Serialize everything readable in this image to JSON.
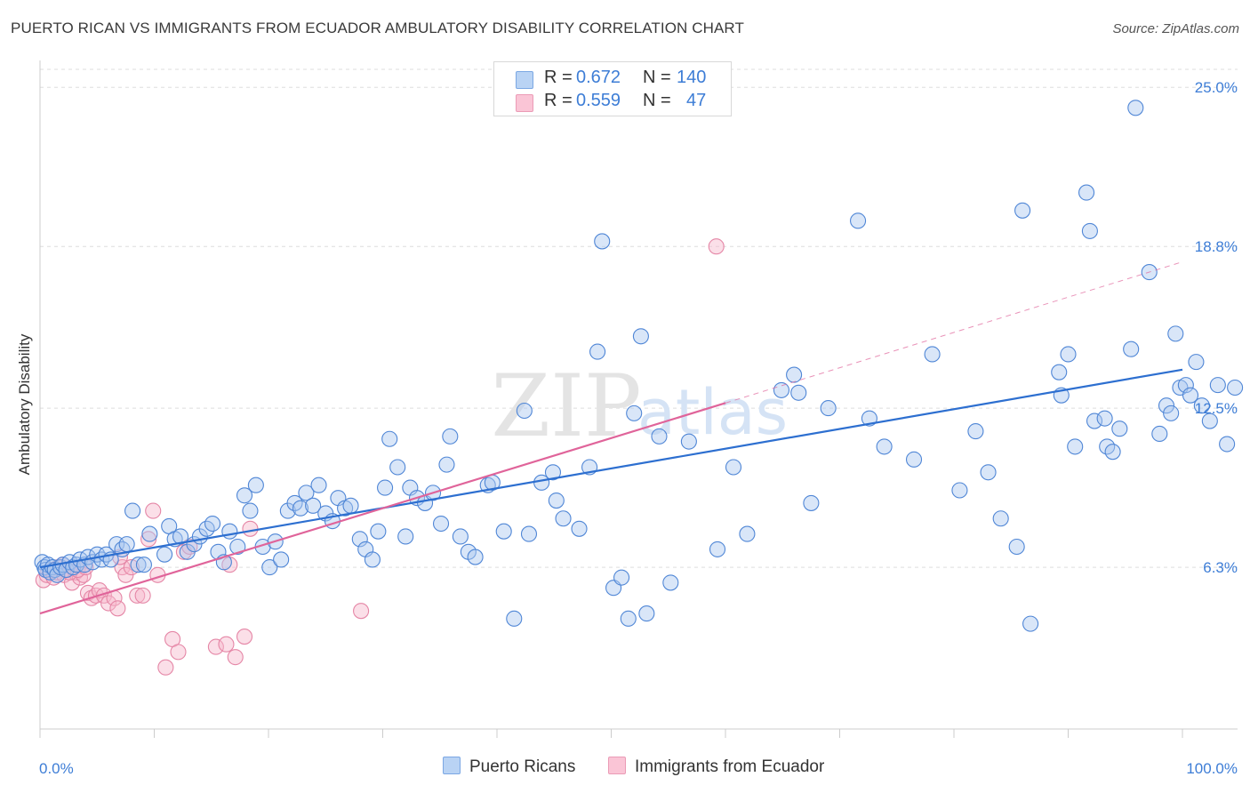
{
  "header": {
    "title": "PUERTO RICAN VS IMMIGRANTS FROM ECUADOR AMBULATORY DISABILITY CORRELATION CHART",
    "source": "Source: ZipAtlas.com"
  },
  "legend": {
    "series1": {
      "r_label": "R =",
      "r_value": "0.672",
      "n_label": "N =",
      "n_value": "140"
    },
    "series2": {
      "r_label": "R =",
      "r_value": "0.559",
      "n_label": "N =",
      "n_value": "47"
    }
  },
  "bottom_legend": {
    "series1": "Puerto Ricans",
    "series2": "Immigrants from Ecuador"
  },
  "watermark": {
    "part1": "ZIP",
    "part2": "atlas"
  },
  "colors": {
    "blue_fill": "#aac8f0",
    "blue_stroke": "#4f86d6",
    "blue_line": "#2d6fd0",
    "pink_fill": "#f6b8cc",
    "pink_stroke": "#e586a6",
    "pink_line": "#e0649a",
    "tick_text": "#3d7dd6",
    "grid": "#dddddd"
  },
  "chart_data": {
    "type": "scatter",
    "title": "PUERTO RICAN VS IMMIGRANTS FROM ECUADOR AMBULATORY DISABILITY CORRELATION CHART",
    "xlabel": "",
    "ylabel": "Ambulatory Disability",
    "xlim": [
      0,
      100
    ],
    "ylim": [
      0,
      25.7
    ],
    "x_tick_labels": [
      {
        "value": 0,
        "label": "0.0%"
      },
      {
        "value": 100,
        "label": "100.0%"
      }
    ],
    "y_tick_labels": [
      {
        "value": 6.3,
        "label": "6.3%"
      },
      {
        "value": 12.5,
        "label": "12.5%"
      },
      {
        "value": 18.8,
        "label": "18.8%"
      },
      {
        "value": 25.0,
        "label": "25.0%"
      }
    ],
    "grid": true,
    "legend_position": "top-center",
    "series": [
      {
        "name": "Puerto Ricans",
        "color": "#4f86d6",
        "points": [
          [
            0.2,
            6.5
          ],
          [
            0.4,
            6.3
          ],
          [
            0.5,
            6.2
          ],
          [
            0.7,
            6.4
          ],
          [
            0.9,
            6.1
          ],
          [
            1.1,
            6.3
          ],
          [
            1.3,
            6.2
          ],
          [
            1.5,
            6.0
          ],
          [
            1.8,
            6.3
          ],
          [
            2.0,
            6.4
          ],
          [
            2.3,
            6.2
          ],
          [
            2.6,
            6.5
          ],
          [
            2.9,
            6.3
          ],
          [
            3.2,
            6.4
          ],
          [
            3.5,
            6.6
          ],
          [
            3.9,
            6.4
          ],
          [
            4.2,
            6.7
          ],
          [
            4.6,
            6.5
          ],
          [
            5.0,
            6.8
          ],
          [
            5.4,
            6.6
          ],
          [
            5.8,
            6.8
          ],
          [
            6.2,
            6.6
          ],
          [
            6.7,
            7.2
          ],
          [
            7.2,
            7.0
          ],
          [
            7.6,
            7.2
          ],
          [
            8.1,
            8.5
          ],
          [
            8.6,
            6.4
          ],
          [
            9.1,
            6.4
          ],
          [
            9.6,
            7.6
          ],
          [
            10.9,
            6.8
          ],
          [
            11.3,
            7.9
          ],
          [
            11.8,
            7.4
          ],
          [
            12.3,
            7.5
          ],
          [
            12.9,
            6.9
          ],
          [
            13.5,
            7.2
          ],
          [
            14.0,
            7.5
          ],
          [
            14.6,
            7.8
          ],
          [
            15.1,
            8.0
          ],
          [
            15.6,
            6.9
          ],
          [
            16.1,
            6.5
          ],
          [
            16.6,
            7.7
          ],
          [
            17.3,
            7.1
          ],
          [
            17.9,
            9.1
          ],
          [
            18.4,
            8.5
          ],
          [
            18.9,
            9.5
          ],
          [
            19.5,
            7.1
          ],
          [
            20.1,
            6.3
          ],
          [
            20.6,
            7.3
          ],
          [
            21.1,
            6.6
          ],
          [
            21.7,
            8.5
          ],
          [
            22.3,
            8.8
          ],
          [
            22.8,
            8.6
          ],
          [
            23.3,
            9.2
          ],
          [
            23.9,
            8.7
          ],
          [
            24.4,
            9.5
          ],
          [
            25.0,
            8.4
          ],
          [
            25.6,
            8.1
          ],
          [
            26.1,
            9.0
          ],
          [
            26.7,
            8.6
          ],
          [
            27.2,
            8.7
          ],
          [
            28.0,
            7.4
          ],
          [
            28.5,
            7.0
          ],
          [
            29.1,
            6.6
          ],
          [
            29.6,
            7.7
          ],
          [
            30.2,
            9.4
          ],
          [
            30.6,
            11.3
          ],
          [
            31.3,
            10.2
          ],
          [
            32.0,
            7.5
          ],
          [
            32.4,
            9.4
          ],
          [
            33.0,
            9.0
          ],
          [
            33.7,
            8.8
          ],
          [
            34.4,
            9.2
          ],
          [
            35.1,
            8.0
          ],
          [
            35.6,
            10.3
          ],
          [
            35.9,
            11.4
          ],
          [
            36.8,
            7.5
          ],
          [
            37.5,
            6.9
          ],
          [
            38.1,
            6.7
          ],
          [
            39.2,
            9.5
          ],
          [
            39.6,
            9.6
          ],
          [
            40.6,
            7.7
          ],
          [
            41.5,
            4.3
          ],
          [
            42.4,
            12.4
          ],
          [
            42.8,
            7.6
          ],
          [
            43.9,
            9.6
          ],
          [
            44.9,
            10.0
          ],
          [
            45.2,
            8.9
          ],
          [
            45.8,
            8.2
          ],
          [
            47.2,
            7.8
          ],
          [
            48.1,
            10.2
          ],
          [
            48.8,
            14.7
          ],
          [
            49.2,
            19.0
          ],
          [
            50.2,
            5.5
          ],
          [
            50.9,
            5.9
          ],
          [
            51.5,
            4.3
          ],
          [
            52.0,
            12.3
          ],
          [
            52.6,
            15.3
          ],
          [
            53.1,
            4.5
          ],
          [
            54.2,
            11.4
          ],
          [
            55.2,
            5.7
          ],
          [
            56.8,
            11.2
          ],
          [
            59.3,
            7.0
          ],
          [
            60.7,
            10.2
          ],
          [
            61.9,
            7.6
          ],
          [
            64.9,
            13.2
          ],
          [
            66.0,
            13.8
          ],
          [
            66.4,
            13.1
          ],
          [
            67.5,
            8.8
          ],
          [
            69.0,
            12.5
          ],
          [
            71.6,
            19.8
          ],
          [
            72.6,
            12.1
          ],
          [
            73.9,
            11.0
          ],
          [
            76.5,
            10.5
          ],
          [
            78.1,
            14.6
          ],
          [
            80.5,
            9.3
          ],
          [
            81.9,
            11.6
          ],
          [
            83.0,
            10.0
          ],
          [
            84.1,
            8.2
          ],
          [
            85.5,
            7.1
          ],
          [
            86.0,
            20.2
          ],
          [
            86.7,
            4.1
          ],
          [
            89.2,
            13.9
          ],
          [
            89.4,
            13.0
          ],
          [
            90.0,
            14.6
          ],
          [
            90.6,
            11.0
          ],
          [
            91.6,
            20.9
          ],
          [
            91.9,
            19.4
          ],
          [
            92.3,
            12.0
          ],
          [
            93.2,
            12.1
          ],
          [
            93.4,
            11.0
          ],
          [
            93.9,
            10.8
          ],
          [
            94.5,
            11.7
          ],
          [
            95.5,
            14.8
          ],
          [
            95.9,
            24.2
          ],
          [
            97.1,
            17.8
          ],
          [
            98.0,
            11.5
          ],
          [
            98.6,
            12.6
          ],
          [
            99.0,
            12.3
          ],
          [
            99.4,
            15.4
          ],
          [
            99.8,
            13.3
          ],
          [
            100.3,
            13.4
          ],
          [
            100.7,
            13.0
          ],
          [
            101.2,
            14.3
          ],
          [
            101.7,
            12.6
          ],
          [
            102.4,
            12.0
          ],
          [
            103.1,
            13.4
          ],
          [
            103.9,
            11.1
          ],
          [
            104.6,
            13.3
          ]
        ]
      },
      {
        "name": "Immigrants from Ecuador",
        "color": "#e586a6",
        "points": [
          [
            0.3,
            5.8
          ],
          [
            0.6,
            6.0
          ],
          [
            0.9,
            6.2
          ],
          [
            1.2,
            5.9
          ],
          [
            1.5,
            6.1
          ],
          [
            1.8,
            6.3
          ],
          [
            2.1,
            6.0
          ],
          [
            2.4,
            6.2
          ],
          [
            2.8,
            5.7
          ],
          [
            3.1,
            6.1
          ],
          [
            3.5,
            5.9
          ],
          [
            3.8,
            6.0
          ],
          [
            4.2,
            5.3
          ],
          [
            4.5,
            5.1
          ],
          [
            4.9,
            5.2
          ],
          [
            5.2,
            5.4
          ],
          [
            5.6,
            5.2
          ],
          [
            6.0,
            4.9
          ],
          [
            6.5,
            5.1
          ],
          [
            6.8,
            4.7
          ],
          [
            7.2,
            6.3
          ],
          [
            7.5,
            6.0
          ],
          [
            8.0,
            6.3
          ],
          [
            8.5,
            5.2
          ],
          [
            9.0,
            5.2
          ],
          [
            9.5,
            7.4
          ],
          [
            9.9,
            8.5
          ],
          [
            10.3,
            6.0
          ],
          [
            11.0,
            2.4
          ],
          [
            11.6,
            3.5
          ],
          [
            12.1,
            3.0
          ],
          [
            12.6,
            6.9
          ],
          [
            13.1,
            7.1
          ],
          [
            15.4,
            3.2
          ],
          [
            16.3,
            3.3
          ],
          [
            16.6,
            6.4
          ],
          [
            17.1,
            2.8
          ],
          [
            17.9,
            3.6
          ],
          [
            18.4,
            7.8
          ],
          [
            1.6,
            6.3
          ],
          [
            2.0,
            6.4
          ],
          [
            2.6,
            6.1
          ],
          [
            3.3,
            6.2
          ],
          [
            4.0,
            6.3
          ],
          [
            7.0,
            6.7
          ],
          [
            28.1,
            4.6
          ],
          [
            59.2,
            18.8
          ]
        ]
      }
    ],
    "trend_lines": [
      {
        "series": "Puerto Ricans",
        "from": [
          0,
          6.3
        ],
        "to": [
          100,
          14.0
        ],
        "style": "solid"
      },
      {
        "series": "Immigrants from Ecuador",
        "from": [
          0,
          4.5
        ],
        "to": [
          60,
          12.7
        ],
        "style": "solid"
      },
      {
        "series": "Immigrants from Ecuador",
        "from": [
          60,
          12.7
        ],
        "to": [
          100,
          18.2
        ],
        "style": "dashed"
      }
    ]
  }
}
